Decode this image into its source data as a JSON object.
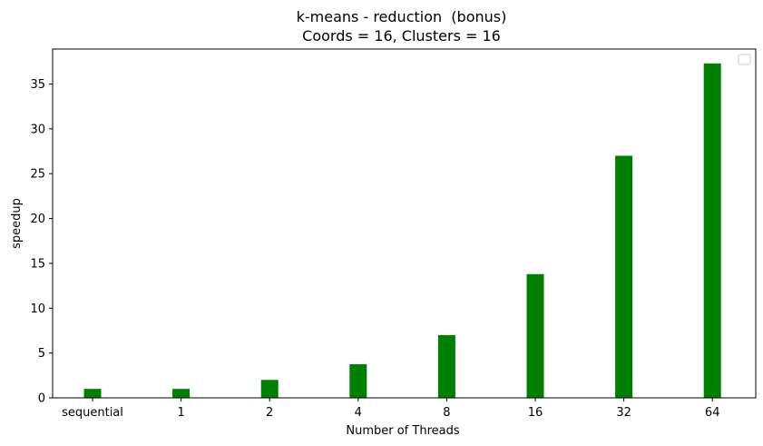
{
  "chart_data": {
    "type": "bar",
    "title": "k-means - reduction  (bonus)",
    "subtitle": "Coords = 16, Clusters = 16",
    "xlabel": "Number of Threads",
    "ylabel": "speedup",
    "categories": [
      "sequential",
      "1",
      "2",
      "4",
      "8",
      "16",
      "32",
      "64"
    ],
    "values": [
      1.0,
      1.0,
      2.0,
      3.75,
      7.0,
      13.8,
      27.0,
      37.3
    ],
    "ylim": [
      0,
      38.9
    ],
    "yticks": [
      0,
      5,
      10,
      15,
      20,
      25,
      30,
      35
    ],
    "bar_color": "#008000",
    "grid": false,
    "legend": "top-right, empty"
  }
}
